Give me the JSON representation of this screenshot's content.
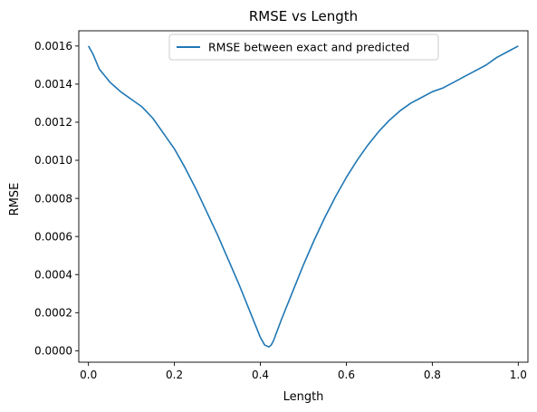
{
  "chart_data": {
    "type": "line",
    "title": "RMSE vs Length",
    "xlabel": "Length",
    "ylabel": "RMSE",
    "xlim": [
      -0.0225,
      1.0225
    ],
    "ylim": [
      -6e-05,
      0.00168
    ],
    "xticks": [
      0.0,
      0.2,
      0.4,
      0.6,
      0.8,
      1.0
    ],
    "xtick_labels": [
      "0.0",
      "0.2",
      "0.4",
      "0.6",
      "0.8",
      "1.0"
    ],
    "yticks": [
      0.0,
      0.0002,
      0.0004,
      0.0006,
      0.0008,
      0.001,
      0.0012,
      0.0014,
      0.0016
    ],
    "ytick_labels": [
      "0.0000",
      "0.0002",
      "0.0004",
      "0.0006",
      "0.0008",
      "0.0010",
      "0.0012",
      "0.0014",
      "0.0016"
    ],
    "grid": false,
    "legend_position": "top-center",
    "colors": {
      "series": "#1f77b4"
    },
    "series": [
      {
        "name": "RMSE between exact and predicted",
        "x": [
          0.0,
          0.01,
          0.025,
          0.05,
          0.075,
          0.1,
          0.125,
          0.15,
          0.175,
          0.2,
          0.225,
          0.25,
          0.275,
          0.3,
          0.325,
          0.35,
          0.375,
          0.4,
          0.41,
          0.42,
          0.425,
          0.43,
          0.45,
          0.475,
          0.5,
          0.525,
          0.55,
          0.575,
          0.6,
          0.625,
          0.65,
          0.675,
          0.7,
          0.725,
          0.75,
          0.775,
          0.8,
          0.825,
          0.85,
          0.875,
          0.9,
          0.925,
          0.95,
          0.975,
          1.0
        ],
        "y": [
          0.0016,
          0.00156,
          0.00148,
          0.00141,
          0.00136,
          0.00132,
          0.00128,
          0.00122,
          0.00114,
          0.00106,
          0.00096,
          0.00085,
          0.00073,
          0.00061,
          0.00048,
          0.00035,
          0.00021,
          7e-05,
          3e-05,
          2e-05,
          3e-05,
          5e-05,
          0.00017,
          0.00031,
          0.00045,
          0.00058,
          0.0007,
          0.00081,
          0.00091,
          0.001,
          0.00108,
          0.00115,
          0.00121,
          0.00126,
          0.0013,
          0.00133,
          0.00136,
          0.00138,
          0.00141,
          0.00144,
          0.00147,
          0.0015,
          0.00154,
          0.00157,
          0.0016
        ]
      }
    ]
  }
}
